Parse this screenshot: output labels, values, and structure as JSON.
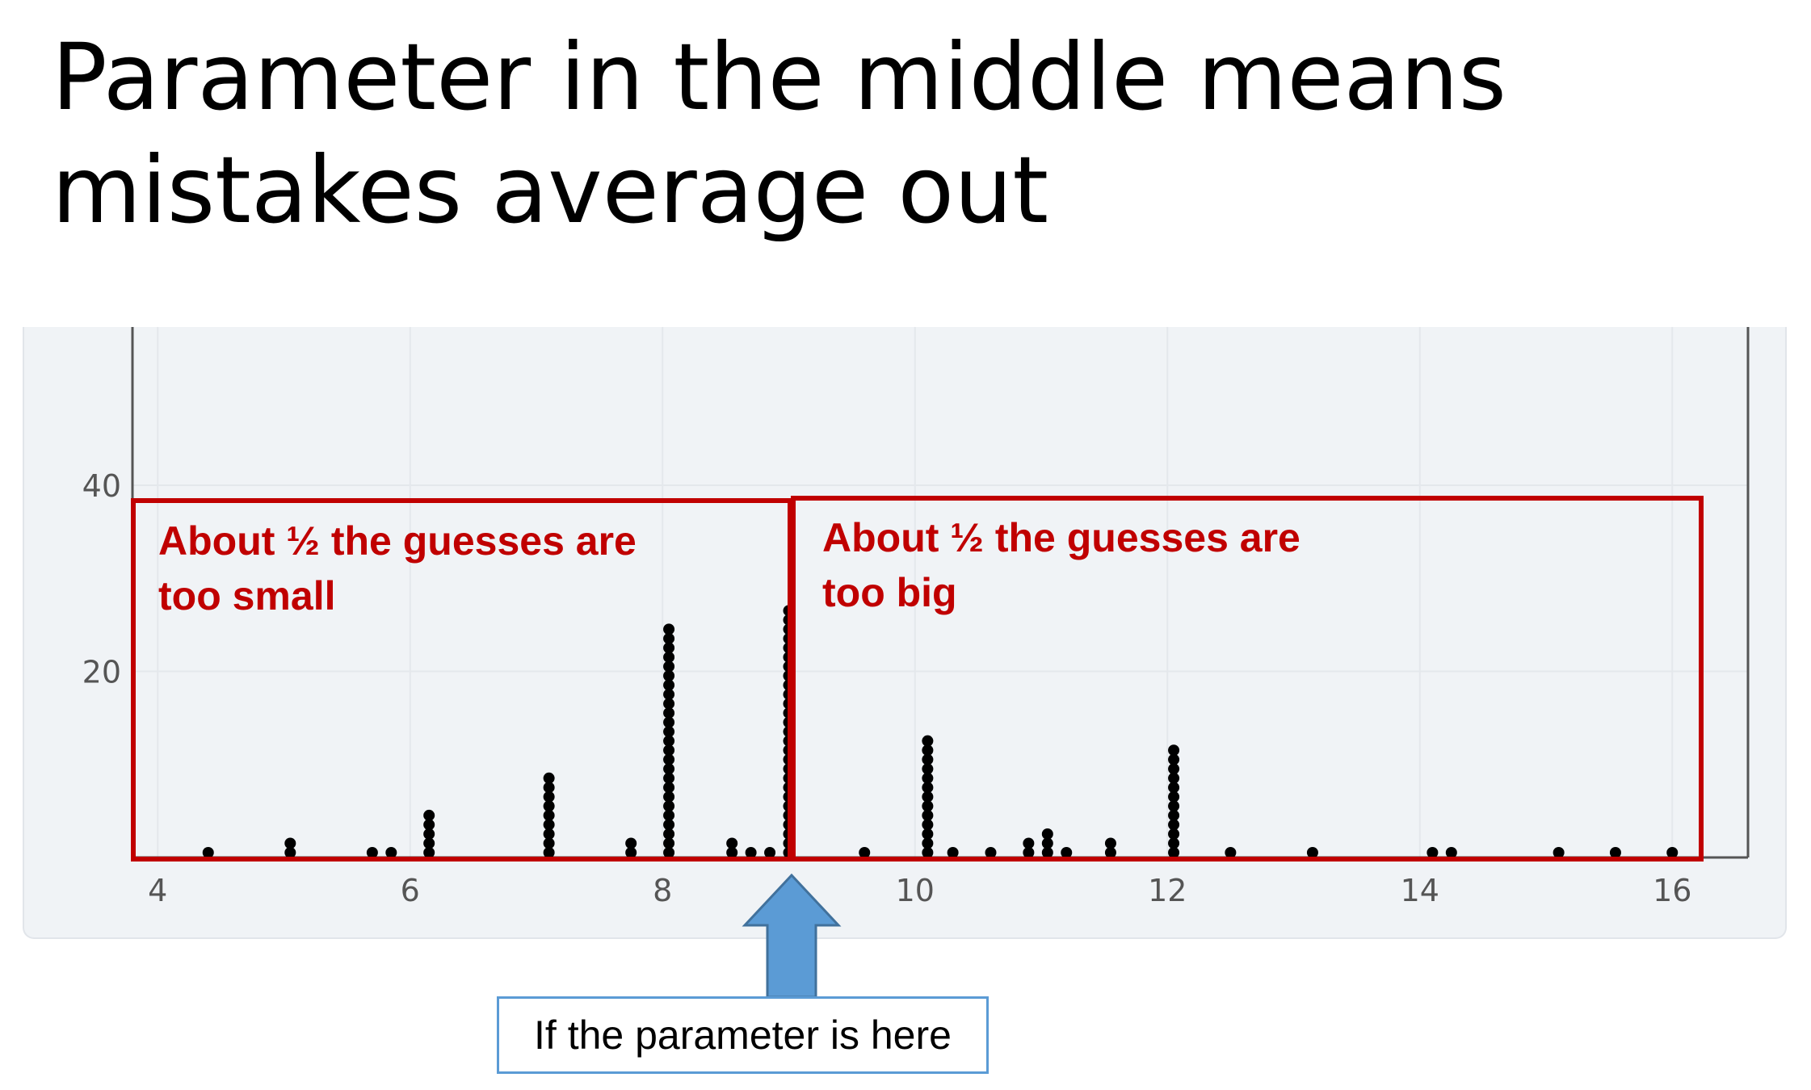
{
  "slide": {
    "title": "Parameter in the middle means mistakes average out"
  },
  "chart_data": {
    "type": "scatter",
    "subtype": "dot-plot",
    "x_ticks": [
      "4",
      "6",
      "8",
      "10",
      "12",
      "14",
      "16"
    ],
    "y_ticks": [
      "20",
      "40"
    ],
    "xlim": [
      3.8,
      16.6
    ],
    "ylim": [
      0,
      57
    ],
    "grid": true,
    "columns": [
      {
        "x": 4.4,
        "count": 1
      },
      {
        "x": 5.05,
        "count": 2
      },
      {
        "x": 5.7,
        "count": 1
      },
      {
        "x": 5.85,
        "count": 1
      },
      {
        "x": 6.15,
        "count": 5
      },
      {
        "x": 7.1,
        "count": 9
      },
      {
        "x": 7.75,
        "count": 2
      },
      {
        "x": 8.05,
        "count": 25
      },
      {
        "x": 8.55,
        "count": 2
      },
      {
        "x": 8.7,
        "count": 1
      },
      {
        "x": 8.85,
        "count": 1
      },
      {
        "x": 9.0,
        "count": 27
      },
      {
        "x": 9.6,
        "count": 1
      },
      {
        "x": 10.1,
        "count": 13
      },
      {
        "x": 10.3,
        "count": 1
      },
      {
        "x": 10.6,
        "count": 1
      },
      {
        "x": 10.9,
        "count": 2
      },
      {
        "x": 11.05,
        "count": 3
      },
      {
        "x": 11.2,
        "count": 1
      },
      {
        "x": 11.55,
        "count": 2
      },
      {
        "x": 12.05,
        "count": 12
      },
      {
        "x": 12.5,
        "count": 1
      },
      {
        "x": 13.15,
        "count": 1
      },
      {
        "x": 14.1,
        "count": 1
      },
      {
        "x": 14.25,
        "count": 1
      },
      {
        "x": 15.1,
        "count": 1
      },
      {
        "x": 15.55,
        "count": 1
      },
      {
        "x": 16.0,
        "count": 1
      }
    ],
    "dot_color": "#000000",
    "gridline_color": "#e4e8ec",
    "axis_color": "#555555",
    "tick_label_color": "#555555"
  },
  "annotations": {
    "left_box": {
      "text": "About ½ the guesses are\ntoo small",
      "color": "#c00000"
    },
    "right_box": {
      "text": "About ½ the guesses are\ntoo big",
      "color": "#c00000"
    },
    "arrow": {
      "label": "If the parameter is here",
      "color": "#5b9bd5"
    }
  }
}
